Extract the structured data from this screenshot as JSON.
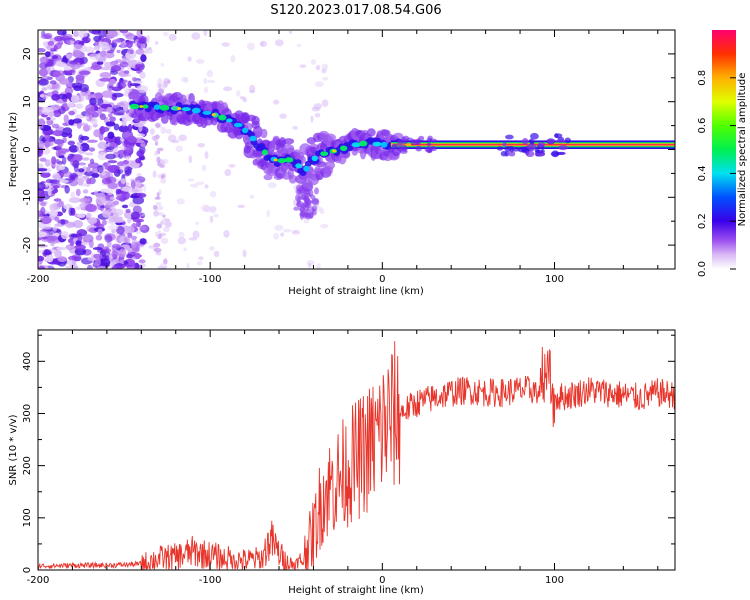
{
  "title": "S120.2023.017.08.54.G06",
  "chart_data": [
    {
      "type": "heatmap",
      "xlabel": "Height of straight line (km)",
      "ylabel": "Frequency (Hz)",
      "xlim": [
        -200,
        170
      ],
      "ylim": [
        -25,
        25
      ],
      "xticks": [
        -200,
        -100,
        0,
        100
      ],
      "yticks": [
        -20,
        -10,
        0,
        10,
        20
      ],
      "colorbar": {
        "label": "Normalized spectral amplitude",
        "range": [
          0,
          1
        ],
        "ticks": [
          0.0,
          0.2,
          0.4,
          0.6,
          0.8
        ]
      },
      "ridge": {
        "x": [
          -145,
          -135,
          -125,
          -115,
          -105,
          -95,
          -85,
          -78,
          -72,
          -66,
          -60,
          -55,
          -50,
          -45,
          -40,
          -35,
          -30,
          -25,
          -20,
          -15,
          -10,
          -5,
          0,
          5,
          10,
          20,
          40,
          60,
          80,
          100,
          120,
          140,
          170
        ],
        "y": [
          9,
          9,
          8.7,
          8.5,
          8,
          7,
          5.5,
          3.5,
          1,
          -1.5,
          -2.5,
          -2,
          -3,
          -4.5,
          -2,
          -1,
          -0.5,
          0,
          0.5,
          1,
          1.3,
          1.2,
          1,
          1,
          1,
          1,
          1,
          1,
          1,
          1,
          1,
          1,
          1
        ]
      }
    },
    {
      "type": "line",
      "xlabel": "Height of straight line (km)",
      "ylabel": "SNR (10 * v/v)",
      "xlim": [
        -200,
        170
      ],
      "ylim": [
        0,
        460
      ],
      "xticks": [
        -200,
        -100,
        0,
        100
      ],
      "yticks": [
        0,
        100,
        200,
        300,
        400
      ],
      "series": [
        {
          "color": "#e8352b",
          "x": [
            -200,
            -190,
            -180,
            -170,
            -160,
            -150,
            -140,
            -130,
            -120,
            -110,
            -100,
            -90,
            -80,
            -70,
            -65,
            -60,
            -55,
            -50,
            -45,
            -40,
            -35,
            -30,
            -25,
            -20,
            -15,
            -10,
            -5,
            0,
            5,
            10,
            20,
            30,
            40,
            50,
            60,
            70,
            80,
            90,
            95,
            100,
            110,
            120,
            130,
            140,
            150,
            160,
            170
          ],
          "y": [
            8,
            8,
            9,
            9,
            9,
            10,
            12,
            22,
            25,
            35,
            28,
            22,
            18,
            22,
            60,
            32,
            12,
            8,
            25,
            70,
            140,
            160,
            175,
            195,
            210,
            225,
            245,
            270,
            290,
            300,
            320,
            330,
            340,
            345,
            340,
            340,
            345,
            345,
            400,
            330,
            335,
            345,
            340,
            335,
            330,
            340,
            335
          ]
        }
      ]
    }
  ]
}
